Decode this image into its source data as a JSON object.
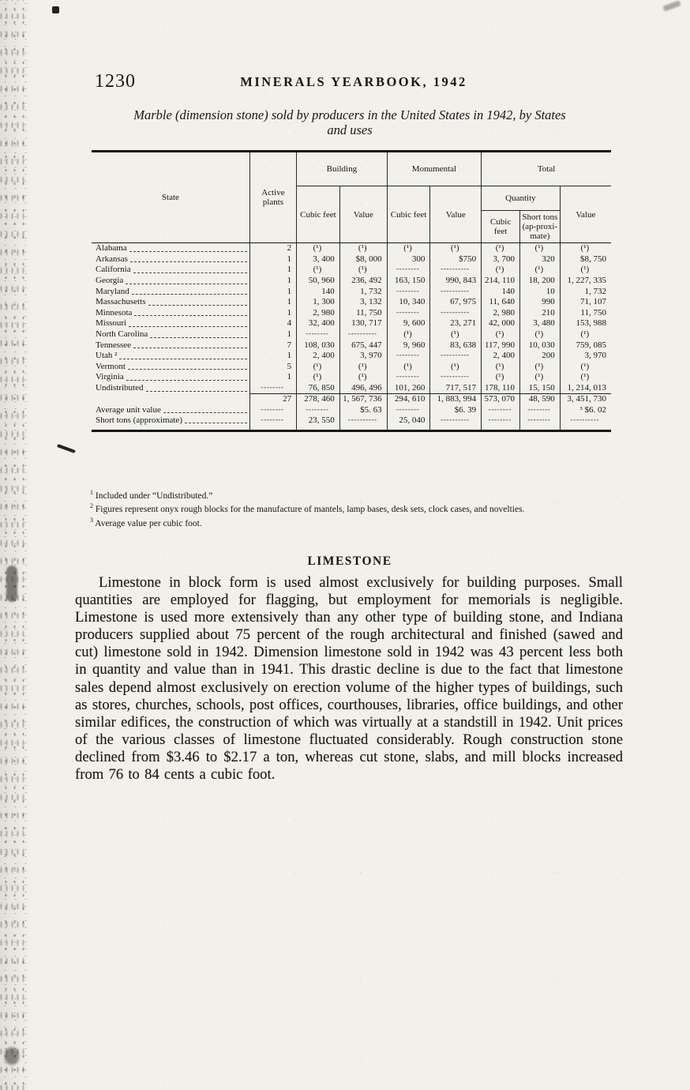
{
  "page": {
    "number": "1230",
    "running_title": "MINERALS YEARBOOK, 1942"
  },
  "table": {
    "title_line1": "Marble (dimension stone) sold by producers in the United States in 1942, by States",
    "title_line2": "and uses",
    "headers": {
      "state": "State",
      "active_plants": "Active plants",
      "building": "Building",
      "monumental": "Monumental",
      "total": "Total",
      "quantity": "Quantity",
      "cubic_feet": "Cubic feet",
      "value": "Value",
      "short_tons": "Short tons (ap-proxi-mate)"
    },
    "rows": [
      {
        "state": "Alabama",
        "cells": [
          "2",
          "(¹)",
          "(¹)",
          "(¹)",
          "(¹)",
          "(¹)",
          "(¹)",
          "(¹)"
        ]
      },
      {
        "state": "Arkansas",
        "cells": [
          "1",
          "3, 400",
          "$8, 000",
          "300",
          "$750",
          "3, 700",
          "320",
          "$8, 750"
        ]
      },
      {
        "state": "California",
        "cells": [
          "1",
          "(¹)",
          "(¹)",
          "--------",
          "----------",
          "(¹)",
          "(¹)",
          "(¹)"
        ]
      },
      {
        "state": "Georgia",
        "cells": [
          "1",
          "50, 960",
          "236, 492",
          "163, 150",
          "990, 843",
          "214, 110",
          "18, 200",
          "1, 227, 335"
        ]
      },
      {
        "state": "Maryland",
        "cells": [
          "1",
          "140",
          "1, 732",
          "--------",
          "----------",
          "140",
          "10",
          "1, 732"
        ]
      },
      {
        "state": "Massachusetts",
        "cells": [
          "1",
          "1, 300",
          "3, 132",
          "10, 340",
          "67, 975",
          "11, 640",
          "990",
          "71, 107"
        ]
      },
      {
        "state": "Minnesota",
        "cells": [
          "1",
          "2, 980",
          "11, 750",
          "--------",
          "----------",
          "2, 980",
          "210",
          "11, 750"
        ]
      },
      {
        "state": "Missouri",
        "cells": [
          "4",
          "32, 400",
          "130, 717",
          "9, 600",
          "23, 271",
          "42, 000",
          "3, 480",
          "153, 988"
        ]
      },
      {
        "state": "North Carolina",
        "cells": [
          "1",
          "--------",
          "----------",
          "(¹)",
          "(¹)",
          "(¹)",
          "(¹)",
          "(¹)"
        ]
      },
      {
        "state": "Tennessee",
        "cells": [
          "7",
          "108, 030",
          "675, 447",
          "9, 960",
          "83, 638",
          "117, 990",
          "10, 030",
          "759, 085"
        ]
      },
      {
        "state": "Utah ²",
        "cells": [
          "1",
          "2, 400",
          "3, 970",
          "--------",
          "----------",
          "2, 400",
          "200",
          "3, 970"
        ]
      },
      {
        "state": "Vermont",
        "cells": [
          "5",
          "(¹)",
          "(¹)",
          "(¹)",
          "(¹)",
          "(¹)",
          "(¹)",
          "(¹)"
        ]
      },
      {
        "state": "Virginia",
        "cells": [
          "1",
          "(¹)",
          "(¹)",
          "--------",
          "----------",
          "(¹)",
          "(¹)",
          "(¹)"
        ]
      },
      {
        "state": "Undistributed",
        "cells": [
          "--------",
          "76, 850",
          "496, 496",
          "101, 260",
          "717, 517",
          "178, 110",
          "15, 150",
          "1, 214, 013"
        ]
      }
    ],
    "summary_rows": [
      {
        "label": "",
        "rule": true,
        "cells": [
          "27",
          "278, 460",
          "1, 567, 736",
          "294, 610",
          "1, 883, 994",
          "573, 070",
          "48, 590",
          "3, 451, 730"
        ]
      },
      {
        "label": "Average unit value",
        "rule": false,
        "cells": [
          "--------",
          "--------",
          "$5. 63",
          "--------",
          "$6. 39",
          "--------",
          "--------",
          "³ $6. 02"
        ]
      },
      {
        "label": "Short tons (approximate)",
        "rule": false,
        "cells": [
          "--------",
          "23, 550",
          "----------",
          "25, 040",
          "----------",
          "--------",
          "--------",
          "----------"
        ]
      }
    ]
  },
  "footnotes": [
    {
      "marker": "1",
      "text": "Included under “Undistributed.”"
    },
    {
      "marker": "2",
      "text": "Figures represent onyx rough blocks for the manufacture of mantels, lamp bases, desk sets, clock cases, and novelties."
    },
    {
      "marker": "3",
      "text": "Average value per cubic foot."
    }
  ],
  "limestone": {
    "heading": "LIMESTONE",
    "paragraph": "Limestone in block form is used almost exclusively for building purposes.  Small quantities are employed for flagging, but employment for memorials is negligible.  Limestone is used more extensively than any other type of building stone, and Indiana producers supplied about 75 percent of the rough architectural and finished (sawed and cut) limestone sold in 1942.  Dimension limestone sold in 1942 was 43 percent less both in quantity and value than in 1941. This drastic decline is due to the fact that limestone sales depend almost exclusively on erection volume of the higher types of buildings, such as stores, churches, schools, post offices, courthouses, libraries, office buildings, and other similar edifices, the construction of which was virtually at a standstill in 1942.  Unit prices of the various classes of limestone fluctuated considerably.  Rough construction stone declined from $3.46 to $2.17 a ton, whereas cut stone, slabs, and mill blocks increased from 76 to 84 cents a cubic foot."
  }
}
